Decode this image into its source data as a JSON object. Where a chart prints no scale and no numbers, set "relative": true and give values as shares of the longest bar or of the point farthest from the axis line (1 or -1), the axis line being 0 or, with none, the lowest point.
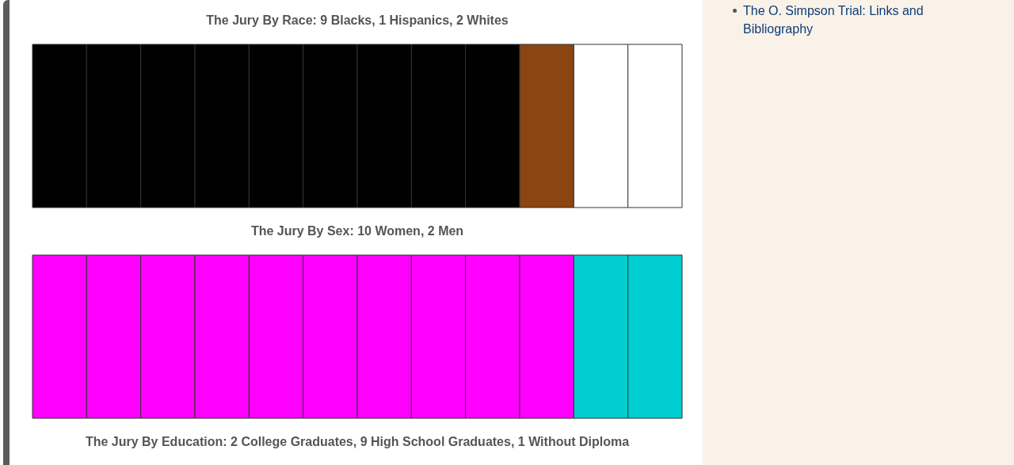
{
  "chart_data": [
    {
      "type": "bar",
      "title": "The Jury By Race: 9 Blacks, 1 Hispanics, 2 Whites",
      "categories": [
        null,
        null,
        null,
        null,
        null,
        null,
        null,
        null,
        null,
        null,
        null,
        null
      ],
      "values": [
        1,
        1,
        1,
        1,
        1,
        1,
        1,
        1,
        1,
        1,
        1,
        1
      ],
      "colors": [
        "#000000",
        "#000000",
        "#000000",
        "#000000",
        "#000000",
        "#000000",
        "#000000",
        "#000000",
        "#000000",
        "#8b4513",
        "#ffffff",
        "#ffffff"
      ],
      "relative": true,
      "annotations": [
        "The O. Simpson Trial: Links and Bibliography"
      ]
    },
    {
      "type": "bar",
      "title": "The Jury By Sex: 10 Women, 2 Men",
      "categories": [
        null,
        null,
        null,
        null,
        null,
        null,
        null,
        null,
        null,
        null,
        null,
        null
      ],
      "values": [
        1,
        1,
        1,
        1,
        1,
        1,
        1,
        1,
        1,
        1,
        1,
        1
      ],
      "colors": [
        "#ff00ff",
        "#ff00ff",
        "#ff00ff",
        "#ff00ff",
        "#ff00ff",
        "#ff00ff",
        "#ff00ff",
        "#ff00ff",
        "#ff00ff",
        "#ff00ff",
        "#00ced1",
        "#00ced1"
      ],
      "relative": true
    },
    {
      "type": "other",
      "title": "The Jury By Education: 2 College Graduates, 9 High School Graduates, 1 Without Diploma"
    }
  ]
}
